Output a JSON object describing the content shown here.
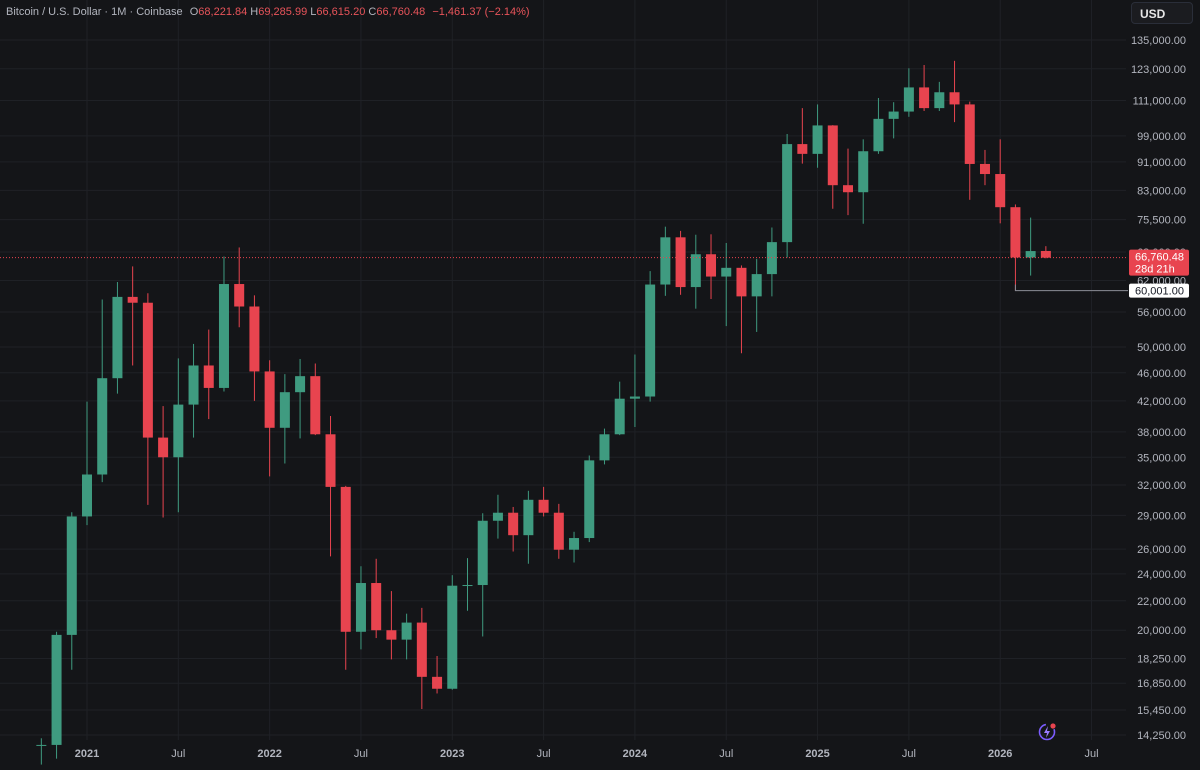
{
  "header": {
    "symbol": "Bitcoin / U.S. Dollar · 1M · Coinbase",
    "open_label": "O",
    "open": "68,221.84",
    "high_label": "H",
    "high": "69,285.99",
    "low_label": "L",
    "low": "66,615.20",
    "close_label": "C",
    "close": "66,760.48",
    "change": "−1,461.37 (−2.14%)"
  },
  "currency_button": "USD",
  "price_labels": {
    "last_price": "66,760.48",
    "countdown": "28d 21h",
    "marked_low": "60,001.00"
  },
  "colors": {
    "up": "#3f9b80",
    "down": "#e8444f",
    "background": "#141518",
    "grid": "#1f2126",
    "axis_text": "#b2b5be"
  },
  "icons": [
    "lightning-badge-icon"
  ],
  "chart_data": {
    "type": "candlestick",
    "timeframe": "1M",
    "y_scale": "log",
    "ylim": [
      13500,
      140000
    ],
    "y_ticks": [
      "135,000.00",
      "123,000.00",
      "111,000.00",
      "99,000.00",
      "91,000.00",
      "83,000.00",
      "75,500.00",
      "68,000.00",
      "62,000.00",
      "56,000.00",
      "50,000.00",
      "46,000.00",
      "42,000.00",
      "38,000.00",
      "35,000.00",
      "32,000.00",
      "29,000.00",
      "26,000.00",
      "24,000.00",
      "22,000.00",
      "20,000.00",
      "18,250.00",
      "16,850.00",
      "15,450.00",
      "14,250.00"
    ],
    "x_ticks": [
      "2021",
      "Jul",
      "2022",
      "Jul",
      "2023",
      "Jul",
      "2024",
      "Jul",
      "2025",
      "Jul",
      "2026",
      "Jul"
    ],
    "x_tick_months": [
      "2021-01",
      "2021-07",
      "2022-01",
      "2022-07",
      "2023-01",
      "2023-07",
      "2024-01",
      "2024-07",
      "2025-01",
      "2025-07",
      "2026-01",
      "2026-07"
    ],
    "candles": [
      {
        "t": "2020-10",
        "o": 13800,
        "h": 14100,
        "l": 12950,
        "c": 13800
      },
      {
        "t": "2020-11",
        "o": 13800,
        "h": 19900,
        "l": 13200,
        "c": 19700
      },
      {
        "t": "2020-12",
        "o": 19700,
        "h": 29300,
        "l": 17600,
        "c": 28900
      },
      {
        "t": "2021-01",
        "o": 28900,
        "h": 41900,
        "l": 28100,
        "c": 33100
      },
      {
        "t": "2021-02",
        "o": 33100,
        "h": 58300,
        "l": 32300,
        "c": 45200
      },
      {
        "t": "2021-03",
        "o": 45200,
        "h": 61700,
        "l": 43000,
        "c": 58800
      },
      {
        "t": "2021-04",
        "o": 58800,
        "h": 64900,
        "l": 47100,
        "c": 57700
      },
      {
        "t": "2021-05",
        "o": 57700,
        "h": 59500,
        "l": 30000,
        "c": 37300
      },
      {
        "t": "2021-06",
        "o": 37300,
        "h": 41300,
        "l": 28800,
        "c": 35000
      },
      {
        "t": "2021-07",
        "o": 35000,
        "h": 48200,
        "l": 29300,
        "c": 41500
      },
      {
        "t": "2021-08",
        "o": 41500,
        "h": 50500,
        "l": 37300,
        "c": 47100
      },
      {
        "t": "2021-09",
        "o": 47100,
        "h": 52900,
        "l": 39600,
        "c": 43800
      },
      {
        "t": "2021-10",
        "o": 43800,
        "h": 67000,
        "l": 43300,
        "c": 61300
      },
      {
        "t": "2021-11",
        "o": 61300,
        "h": 69000,
        "l": 53300,
        "c": 57000
      },
      {
        "t": "2021-12",
        "o": 57000,
        "h": 59100,
        "l": 42000,
        "c": 46200
      },
      {
        "t": "2022-01",
        "o": 46200,
        "h": 47900,
        "l": 32900,
        "c": 38500
      },
      {
        "t": "2022-02",
        "o": 38500,
        "h": 45800,
        "l": 34300,
        "c": 43200
      },
      {
        "t": "2022-03",
        "o": 43200,
        "h": 48100,
        "l": 37200,
        "c": 45500
      },
      {
        "t": "2022-04",
        "o": 45500,
        "h": 47400,
        "l": 37600,
        "c": 37700
      },
      {
        "t": "2022-05",
        "o": 37700,
        "h": 40000,
        "l": 25400,
        "c": 31800
      },
      {
        "t": "2022-06",
        "o": 31800,
        "h": 31900,
        "l": 17600,
        "c": 19900
      },
      {
        "t": "2022-07",
        "o": 19900,
        "h": 24600,
        "l": 18800,
        "c": 23300
      },
      {
        "t": "2022-08",
        "o": 23300,
        "h": 25200,
        "l": 19500,
        "c": 20000
      },
      {
        "t": "2022-09",
        "o": 20000,
        "h": 22700,
        "l": 18200,
        "c": 19400
      },
      {
        "t": "2022-10",
        "o": 19400,
        "h": 21100,
        "l": 18200,
        "c": 20500
      },
      {
        "t": "2022-11",
        "o": 20500,
        "h": 21500,
        "l": 15500,
        "c": 17200
      },
      {
        "t": "2022-12",
        "o": 17200,
        "h": 18400,
        "l": 16300,
        "c": 16550
      },
      {
        "t": "2023-01",
        "o": 16550,
        "h": 23900,
        "l": 16500,
        "c": 23100
      },
      {
        "t": "2023-02",
        "o": 23100,
        "h": 25250,
        "l": 21300,
        "c": 23150
      },
      {
        "t": "2023-03",
        "o": 23150,
        "h": 29200,
        "l": 19600,
        "c": 28500
      },
      {
        "t": "2023-04",
        "o": 28500,
        "h": 31000,
        "l": 26900,
        "c": 29250
      },
      {
        "t": "2023-05",
        "o": 29250,
        "h": 29800,
        "l": 25800,
        "c": 27200
      },
      {
        "t": "2023-06",
        "o": 27200,
        "h": 31400,
        "l": 24800,
        "c": 30500
      },
      {
        "t": "2023-07",
        "o": 30500,
        "h": 31800,
        "l": 28900,
        "c": 29250
      },
      {
        "t": "2023-08",
        "o": 29250,
        "h": 30100,
        "l": 25200,
        "c": 25950
      },
      {
        "t": "2023-09",
        "o": 25950,
        "h": 27500,
        "l": 24900,
        "c": 26950
      },
      {
        "t": "2023-10",
        "o": 26950,
        "h": 35200,
        "l": 26600,
        "c": 34650
      },
      {
        "t": "2023-11",
        "o": 34650,
        "h": 38400,
        "l": 34200,
        "c": 37700
      },
      {
        "t": "2023-12",
        "o": 37700,
        "h": 44700,
        "l": 37600,
        "c": 42300
      },
      {
        "t": "2024-01",
        "o": 42300,
        "h": 48800,
        "l": 38600,
        "c": 42600
      },
      {
        "t": "2024-02",
        "o": 42600,
        "h": 63900,
        "l": 41900,
        "c": 61200
      },
      {
        "t": "2024-03",
        "o": 61200,
        "h": 73800,
        "l": 59000,
        "c": 71300
      },
      {
        "t": "2024-04",
        "o": 71300,
        "h": 72800,
        "l": 59200,
        "c": 60700
      },
      {
        "t": "2024-05",
        "o": 60700,
        "h": 71900,
        "l": 56600,
        "c": 67500
      },
      {
        "t": "2024-06",
        "o": 67500,
        "h": 72000,
        "l": 58400,
        "c": 62800
      },
      {
        "t": "2024-07",
        "o": 62800,
        "h": 70000,
        "l": 53500,
        "c": 64600
      },
      {
        "t": "2024-08",
        "o": 64600,
        "h": 65100,
        "l": 49000,
        "c": 58900
      },
      {
        "t": "2024-09",
        "o": 58900,
        "h": 66500,
        "l": 52500,
        "c": 63300
      },
      {
        "t": "2024-10",
        "o": 63300,
        "h": 73600,
        "l": 58900,
        "c": 70200
      },
      {
        "t": "2024-11",
        "o": 70200,
        "h": 99600,
        "l": 66800,
        "c": 96400
      },
      {
        "t": "2024-12",
        "o": 96400,
        "h": 108300,
        "l": 90500,
        "c": 93400
      },
      {
        "t": "2025-01",
        "o": 93400,
        "h": 109600,
        "l": 89300,
        "c": 102400
      },
      {
        "t": "2025-02",
        "o": 102400,
        "h": 102500,
        "l": 78200,
        "c": 84400
      },
      {
        "t": "2025-03",
        "o": 84400,
        "h": 95000,
        "l": 76600,
        "c": 82500
      },
      {
        "t": "2025-04",
        "o": 82500,
        "h": 97900,
        "l": 74500,
        "c": 94200
      },
      {
        "t": "2025-05",
        "o": 94200,
        "h": 111900,
        "l": 93400,
        "c": 104600
      },
      {
        "t": "2025-06",
        "o": 104600,
        "h": 110400,
        "l": 98200,
        "c": 107100
      },
      {
        "t": "2025-07",
        "o": 107100,
        "h": 123200,
        "l": 105300,
        "c": 115800
      },
      {
        "t": "2025-08",
        "o": 115800,
        "h": 124500,
        "l": 107300,
        "c": 108300
      },
      {
        "t": "2025-09",
        "o": 108300,
        "h": 117900,
        "l": 107300,
        "c": 114000
      },
      {
        "t": "2025-10",
        "o": 114000,
        "h": 126200,
        "l": 103500,
        "c": 109600
      },
      {
        "t": "2025-11",
        "o": 109600,
        "h": 110600,
        "l": 80500,
        "c": 90400
      },
      {
        "t": "2025-12",
        "o": 90400,
        "h": 94600,
        "l": 84400,
        "c": 87500
      },
      {
        "t": "2026-01",
        "o": 87500,
        "h": 97900,
        "l": 74600,
        "c": 78600
      },
      {
        "t": "2026-02",
        "o": 78600,
        "h": 79300,
        "l": 60001,
        "c": 66800
      },
      {
        "t": "2026-03",
        "o": 66800,
        "h": 76000,
        "l": 63000,
        "c": 68200
      },
      {
        "t": "2026-04",
        "o": 68221.84,
        "h": 69285.99,
        "l": 66615.2,
        "c": 66760.48
      }
    ]
  }
}
